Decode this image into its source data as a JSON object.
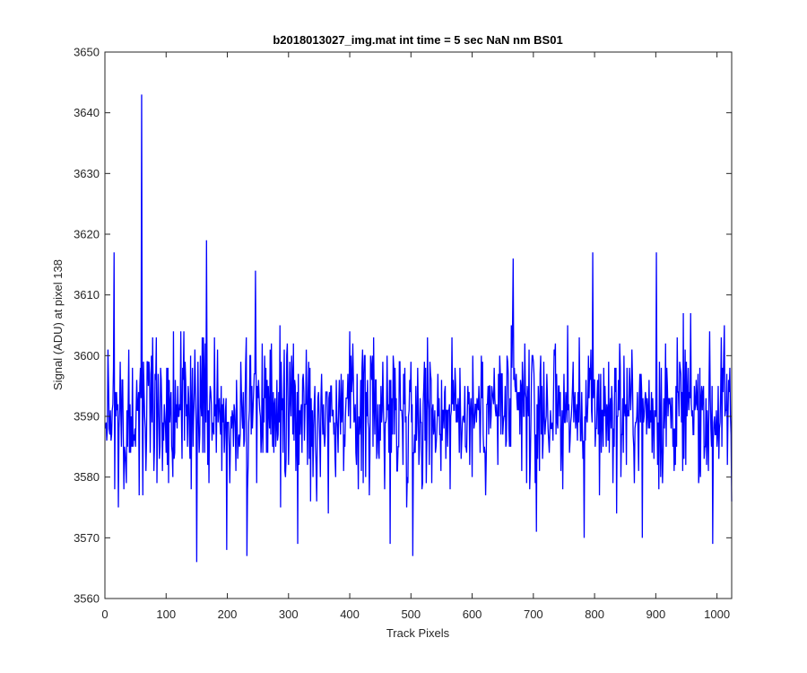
{
  "chart_data": {
    "type": "line",
    "title": "b2018013027_img.mat int time = 5 sec  NaN nm BS01",
    "xlabel": "Track Pixels",
    "ylabel": "Signal (ADU) at pixel 138",
    "xlim": [
      0,
      1024
    ],
    "ylim": [
      3560,
      3650
    ],
    "x_ticks": [
      "0",
      "100",
      "200",
      "300",
      "400",
      "500",
      "600",
      "700",
      "800",
      "900",
      "1000"
    ],
    "y_ticks": [
      "3560",
      "3570",
      "3580",
      "3590",
      "3600",
      "3610",
      "3620",
      "3630",
      "3640",
      "3650"
    ],
    "grid": false,
    "legend": "none",
    "series_color": "#0000ff",
    "series": [
      {
        "x_start": 1,
        "x_step": 1,
        "n_points": 1024,
        "baseline": 3591,
        "noise_amplitude": 7.5,
        "notable_points": [
          {
            "x": 60,
            "y": 3643
          },
          {
            "x": 166,
            "y": 3619
          },
          {
            "x": 150,
            "y": 3566
          },
          {
            "x": 232,
            "y": 3567
          },
          {
            "x": 199,
            "y": 3568
          },
          {
            "x": 503,
            "y": 3567
          },
          {
            "x": 315,
            "y": 3569
          },
          {
            "x": 466,
            "y": 3569
          },
          {
            "x": 993,
            "y": 3569
          },
          {
            "x": 22,
            "y": 3575
          },
          {
            "x": 797,
            "y": 3617
          },
          {
            "x": 667,
            "y": 3616
          },
          {
            "x": 901,
            "y": 3617
          },
          {
            "x": 246,
            "y": 3614
          },
          {
            "x": 15,
            "y": 3617
          },
          {
            "x": 878,
            "y": 3570
          },
          {
            "x": 705,
            "y": 3571
          },
          {
            "x": 783,
            "y": 3570
          },
          {
            "x": 1024,
            "y": 3576
          }
        ]
      }
    ]
  }
}
